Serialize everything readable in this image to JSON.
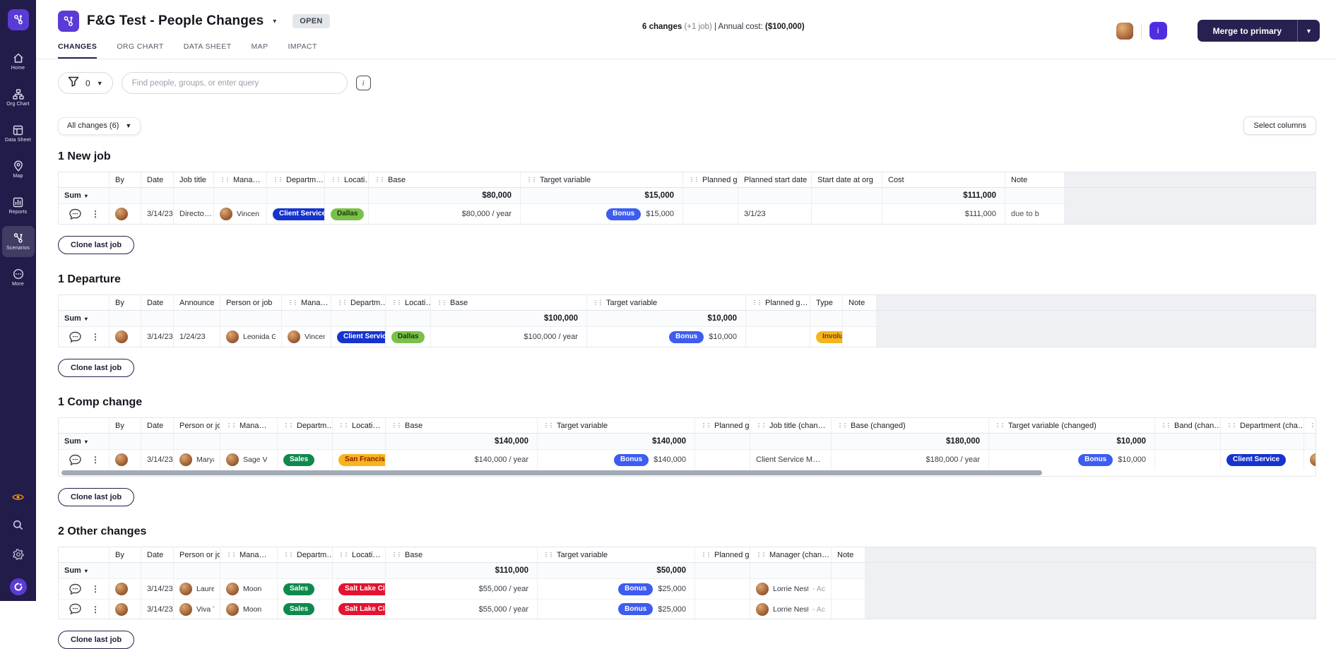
{
  "sidebar": {
    "items": [
      {
        "label": "Home",
        "icon": "home-icon"
      },
      {
        "label": "Org Chart",
        "icon": "org-chart-icon"
      },
      {
        "label": "Data Sheet",
        "icon": "data-sheet-icon"
      },
      {
        "label": "Map",
        "icon": "map-pin-icon"
      },
      {
        "label": "Reports",
        "icon": "reports-icon"
      },
      {
        "label": "Scenarios",
        "icon": "scenarios-icon",
        "active": true
      },
      {
        "label": "More",
        "icon": "more-icon"
      }
    ]
  },
  "header": {
    "title": "F&G Test - People Changes",
    "status": "OPEN",
    "summary": {
      "changes": "6 changes",
      "jobs": "(+1 job)",
      "sep": "|",
      "label": "Annual cost:",
      "cost": "($100,000)"
    },
    "avatar_letter": "i",
    "merge_label": "Merge to primary",
    "tabs": [
      {
        "label": "CHANGES",
        "active": true
      },
      {
        "label": "ORG CHART"
      },
      {
        "label": "DATA SHEET"
      },
      {
        "label": "MAP"
      },
      {
        "label": "IMPACT"
      }
    ]
  },
  "toolbar": {
    "filter_count": "0",
    "search_placeholder": "Find people, groups, or enter query",
    "info_label": "i"
  },
  "content": {
    "all_changes_label": "All changes (6)",
    "select_columns_label": "Select columns",
    "sum_label": "Sum",
    "clone_label": "Clone last job"
  },
  "palette": {
    "blue": {
      "bg": "#1733cf",
      "fg": "#ffffff"
    },
    "bonus": {
      "bg": "#3d5cf0",
      "fg": "#ffffff"
    },
    "green_light": {
      "bg": "#79c14a",
      "fg": "#1c3505"
    },
    "green_dark": {
      "bg": "#0e8a4c",
      "fg": "#ffffff"
    },
    "amber_red": {
      "bg": "#f6b41d",
      "fg": "#8f1d00"
    },
    "amber_dark": {
      "bg": "#f6b41d",
      "fg": "#6d4200"
    },
    "red": {
      "bg": "#e51230",
      "fg": "#ffffff"
    }
  },
  "sections": [
    {
      "heading": "1 New job",
      "columns": [
        {
          "key": "controls",
          "label": ""
        },
        {
          "key": "by",
          "label": "By"
        },
        {
          "key": "date",
          "label": "Date"
        },
        {
          "key": "job_title",
          "label": "Job title"
        },
        {
          "key": "manager",
          "label": "Mana…",
          "drag": true
        },
        {
          "key": "department",
          "label": "Departm…",
          "drag": true
        },
        {
          "key": "location",
          "label": "Locati…",
          "drag": true
        },
        {
          "key": "base",
          "label": "Base",
          "drag": true
        },
        {
          "key": "target_variable",
          "label": "Target variable",
          "drag": true
        },
        {
          "key": "planned_g",
          "label": "Planned g…",
          "drag": true
        },
        {
          "key": "planned_start",
          "label": "Planned start date"
        },
        {
          "key": "start_at_org",
          "label": "Start date at org"
        },
        {
          "key": "cost",
          "label": "Cost"
        },
        {
          "key": "note",
          "label": "Note"
        },
        {
          "key": "filler",
          "label": ""
        }
      ],
      "sum": {
        "base": "$80,000",
        "target_variable": "$15,000",
        "cost": "$111,000"
      },
      "rows": [
        {
          "controls": {
            "type": "controls"
          },
          "by": {
            "type": "avatar"
          },
          "date": {
            "type": "text",
            "v": "3/14/23"
          },
          "job_title": {
            "type": "text",
            "v": "Directo…"
          },
          "manager": {
            "type": "person",
            "v": "Vincen"
          },
          "department": {
            "type": "pill",
            "v": "Client Service",
            "c": "blue"
          },
          "location": {
            "type": "pill",
            "v": "Dallas",
            "c": "green_light"
          },
          "base": {
            "type": "money",
            "v": "$80,000 / year"
          },
          "target_variable": {
            "type": "bonus",
            "badge": "Bonus",
            "v": "$15,000"
          },
          "planned_start": {
            "type": "text",
            "v": "3/1/23"
          },
          "cost": {
            "type": "money",
            "v": "$111,000"
          },
          "note": {
            "type": "note",
            "v": "due to b"
          }
        }
      ]
    },
    {
      "heading": "1 Departure",
      "columns": [
        {
          "key": "controls",
          "label": ""
        },
        {
          "key": "by",
          "label": "By"
        },
        {
          "key": "date",
          "label": "Date"
        },
        {
          "key": "announce",
          "label": "Announce"
        },
        {
          "key": "person",
          "label": "Person or job"
        },
        {
          "key": "manager",
          "label": "Mana…",
          "drag": true
        },
        {
          "key": "department",
          "label": "Departm…",
          "drag": true
        },
        {
          "key": "location",
          "label": "Locati…",
          "drag": true
        },
        {
          "key": "base",
          "label": "Base",
          "drag": true
        },
        {
          "key": "target_variable",
          "label": "Target variable",
          "drag": true
        },
        {
          "key": "planned_g",
          "label": "Planned g…",
          "drag": true
        },
        {
          "key": "type",
          "label": "Type"
        },
        {
          "key": "note",
          "label": "Note"
        },
        {
          "key": "filler",
          "label": ""
        }
      ],
      "sum": {
        "base": "$100,000",
        "target_variable": "$10,000"
      },
      "rows": [
        {
          "controls": {
            "type": "controls"
          },
          "by": {
            "type": "avatar"
          },
          "date": {
            "type": "text",
            "v": "3/14/23"
          },
          "announce": {
            "type": "text",
            "v": "1/24/23"
          },
          "person": {
            "type": "person",
            "v": "Leonida Gc"
          },
          "manager": {
            "type": "person",
            "v": "Vincen"
          },
          "department": {
            "type": "pill",
            "v": "Client Service",
            "c": "blue"
          },
          "location": {
            "type": "pill",
            "v": "Dallas",
            "c": "green_light"
          },
          "base": {
            "type": "money",
            "v": "$100,000 / year"
          },
          "target_variable": {
            "type": "bonus",
            "badge": "Bonus",
            "v": "$10,000"
          },
          "type": {
            "type": "pill",
            "v": "Involuntary",
            "c": "amber_dark"
          }
        }
      ]
    },
    {
      "heading": "1 Comp change",
      "scrollbar": true,
      "columns": [
        {
          "key": "controls",
          "label": ""
        },
        {
          "key": "by",
          "label": "By"
        },
        {
          "key": "date",
          "label": "Date"
        },
        {
          "key": "person",
          "label": "Person or job"
        },
        {
          "key": "manager",
          "label": "Mana…",
          "drag": true
        },
        {
          "key": "department",
          "label": "Departm…",
          "drag": true
        },
        {
          "key": "location",
          "label": "Locati…",
          "drag": true
        },
        {
          "key": "base",
          "label": "Base",
          "drag": true
        },
        {
          "key": "target_variable",
          "label": "Target variable",
          "drag": true
        },
        {
          "key": "planned_g",
          "label": "Planned g…",
          "drag": true
        },
        {
          "key": "job_title_changed",
          "label": "Job title (chan…",
          "drag": true
        },
        {
          "key": "base_changed",
          "label": "Base (changed)",
          "drag": true
        },
        {
          "key": "tv_changed",
          "label": "Target variable (changed)",
          "drag": true
        },
        {
          "key": "band_changed",
          "label": "Band (chan…",
          "drag": true
        },
        {
          "key": "dept_changed",
          "label": "Department (cha…",
          "drag": true
        },
        {
          "key": "m",
          "label": "M",
          "drag": true
        }
      ],
      "sum": {
        "base": "$140,000",
        "target_variable": "$140,000",
        "base_changed": "$180,000",
        "tv_changed": "$10,000"
      },
      "rows": [
        {
          "controls": {
            "type": "controls"
          },
          "by": {
            "type": "avatar"
          },
          "date": {
            "type": "text",
            "v": "3/14/23"
          },
          "person": {
            "type": "person",
            "v": "Maryann R"
          },
          "manager": {
            "type": "person",
            "v": "Sage V"
          },
          "department": {
            "type": "pill",
            "v": "Sales",
            "c": "green_dark"
          },
          "location": {
            "type": "pill",
            "v": "San Francisco",
            "c": "amber_red"
          },
          "base": {
            "type": "money",
            "v": "$140,000 / year"
          },
          "target_variable": {
            "type": "bonus",
            "badge": "Bonus",
            "v": "$140,000"
          },
          "job_title_changed": {
            "type": "text",
            "v": "Client Service M…"
          },
          "base_changed": {
            "type": "money",
            "v": "$180,000 / year"
          },
          "tv_changed": {
            "type": "bonus",
            "badge": "Bonus",
            "v": "$10,000"
          },
          "dept_changed": {
            "type": "pill",
            "v": "Client Service",
            "c": "blue"
          },
          "m": {
            "type": "avatar"
          }
        }
      ]
    },
    {
      "heading": "2 Other changes",
      "columns": [
        {
          "key": "controls",
          "label": ""
        },
        {
          "key": "by",
          "label": "By"
        },
        {
          "key": "date",
          "label": "Date"
        },
        {
          "key": "person",
          "label": "Person or job"
        },
        {
          "key": "manager",
          "label": "Mana…",
          "drag": true
        },
        {
          "key": "department",
          "label": "Departm…",
          "drag": true
        },
        {
          "key": "location",
          "label": "Locati…",
          "drag": true
        },
        {
          "key": "base",
          "label": "Base",
          "drag": true
        },
        {
          "key": "target_variable",
          "label": "Target variable",
          "drag": true
        },
        {
          "key": "planned_g",
          "label": "Planned g…",
          "drag": true
        },
        {
          "key": "manager_changed",
          "label": "Manager (chan…",
          "drag": true
        },
        {
          "key": "note",
          "label": "Note"
        },
        {
          "key": "filler",
          "label": ""
        }
      ],
      "sum": {
        "base": "$110,000",
        "target_variable": "$50,000"
      },
      "rows": [
        {
          "controls": {
            "type": "controls"
          },
          "by": {
            "type": "avatar"
          },
          "date": {
            "type": "text",
            "v": "3/14/23"
          },
          "person": {
            "type": "person",
            "v": "Laurel Reitl"
          },
          "manager": {
            "type": "person",
            "v": "Moon"
          },
          "department": {
            "type": "pill",
            "v": "Sales",
            "c": "green_dark"
          },
          "location": {
            "type": "pill",
            "v": "Salt Lake City",
            "c": "red"
          },
          "base": {
            "type": "money",
            "v": "$55,000 / year"
          },
          "target_variable": {
            "type": "bonus",
            "badge": "Bonus",
            "v": "$25,000"
          },
          "manager_changed": {
            "type": "person",
            "v": "Lorrie Nestle",
            "sub": "- Ac"
          }
        },
        {
          "controls": {
            "type": "controls"
          },
          "by": {
            "type": "avatar"
          },
          "date": {
            "type": "text",
            "v": "3/14/23"
          },
          "person": {
            "type": "person",
            "v": "Viva Toelke"
          },
          "manager": {
            "type": "person",
            "v": "Moon"
          },
          "department": {
            "type": "pill",
            "v": "Sales",
            "c": "green_dark"
          },
          "location": {
            "type": "pill",
            "v": "Salt Lake City",
            "c": "red"
          },
          "base": {
            "type": "money",
            "v": "$55,000 / year"
          },
          "target_variable": {
            "type": "bonus",
            "badge": "Bonus",
            "v": "$25,000"
          },
          "manager_changed": {
            "type": "person",
            "v": "Lorrie Nestle",
            "sub": "- Ac"
          }
        }
      ]
    }
  ]
}
